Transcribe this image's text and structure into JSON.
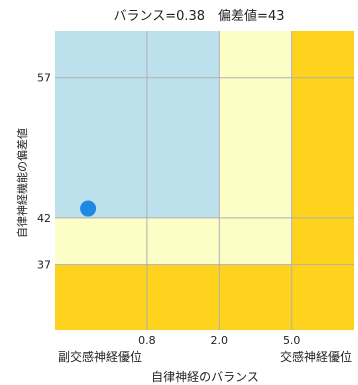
{
  "chart_data": {
    "type": "scatter",
    "title": "バランス=0.38　偏差値=43",
    "xlabel": "自律神経のバランス",
    "ylabel": "自律神経機能の偏差値",
    "x_scale": "log",
    "xlim": [
      0.25,
      11
    ],
    "ylim": [
      30,
      62
    ],
    "x_ticks": [
      {
        "value": 0.8,
        "label": "0.8"
      },
      {
        "value": 2.0,
        "label": "2.0"
      },
      {
        "value": 5.0,
        "label": "5.0"
      }
    ],
    "y_ticks": [
      {
        "value": 37,
        "label": "37"
      },
      {
        "value": 42,
        "label": "42"
      },
      {
        "value": 57,
        "label": "57"
      }
    ],
    "x_end_labels": {
      "left": "副交感神経優位",
      "right": "交感神経優位"
    },
    "zones": [
      {
        "x": [
          0.25,
          11
        ],
        "y": [
          30,
          62
        ],
        "color": "#ffd21e"
      },
      {
        "x": [
          0.25,
          5.0
        ],
        "y": [
          37,
          62
        ],
        "color": "#fdfdc8"
      },
      {
        "x": [
          0.25,
          2.0
        ],
        "y": [
          42,
          62
        ],
        "color": "#bce0ec"
      }
    ],
    "grid": true,
    "grid_color": "#b0b0b0",
    "point": {
      "x": 0.38,
      "y": 43,
      "color": "#1e88e5"
    }
  }
}
